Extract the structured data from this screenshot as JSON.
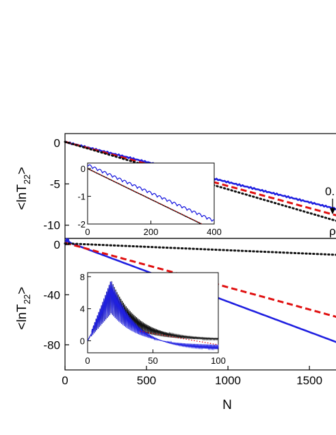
{
  "chart_data": [
    {
      "type": "line",
      "panel": "top main",
      "ylabel": "<lnT",
      "ylabel_sub": "22",
      "ylabel_close": ">",
      "xlim": [
        0,
        1680
      ],
      "ylim": [
        -11.6,
        1.1
      ],
      "yticks": [
        0,
        -5,
        -10
      ],
      "annotations": {
        "value_text": "0.",
        "rho_text": "ρ"
      },
      "series": [
        {
          "style": "solid",
          "color": "#1f1fe0",
          "slope": -0.00488,
          "intercept": 0.1
        },
        {
          "style": "dashed",
          "color": "#e01010",
          "slope": -0.00535,
          "intercept": 0.1
        },
        {
          "style": "dotted",
          "color": "#111111",
          "slope": -0.00575,
          "intercept": 0.1
        }
      ]
    },
    {
      "type": "line",
      "panel": "top inset",
      "xlim": [
        0,
        400
      ],
      "ylim": [
        -2,
        0.2
      ],
      "xticks": [
        0,
        200,
        400
      ],
      "yticks": [
        0,
        -1,
        -2
      ],
      "series": [
        {
          "style": "oscillating",
          "color": "#1f1fe0",
          "x_end": 400,
          "y_end": -2.0
        },
        {
          "style": "solid",
          "color": "#111111",
          "x_end": 360,
          "y_end": -2.0
        },
        {
          "style": "dotted",
          "color": "#e01010",
          "x_end": 362,
          "y_end": -2.0
        }
      ]
    },
    {
      "type": "line",
      "panel": "bottom main",
      "xlabel": "N",
      "ylabel": "<lnT",
      "ylabel_sub": "22",
      "ylabel_close": ">",
      "xlim": [
        0,
        1680
      ],
      "ylim": [
        -100,
        5
      ],
      "xticks": [
        0,
        500,
        1000,
        1500
      ],
      "yticks": [
        0,
        -40,
        -80
      ],
      "series": [
        {
          "style": "solid",
          "color": "#1f1fe0",
          "slope": -0.0485,
          "intercept": 3.0,
          "spike_max": 4
        },
        {
          "style": "dashed",
          "color": "#e01010",
          "slope": -0.0355,
          "intercept": 1.5
        },
        {
          "style": "dotted",
          "color": "#111111",
          "slope": -0.00545,
          "intercept": 1.0
        }
      ]
    },
    {
      "type": "line",
      "panel": "bottom inset",
      "xlim": [
        0,
        100
      ],
      "ylim": [
        -1.5,
        8.5
      ],
      "xticks": [
        0,
        50,
        100
      ],
      "yticks": [
        0,
        4,
        8
      ],
      "series": [
        {
          "style": "oscillating",
          "color": "#111111",
          "peak_x": 18,
          "peak_y": 7.6,
          "end_y": 0.2
        },
        {
          "style": "oscillating",
          "color": "#1f1fe0",
          "peak_x": 18,
          "peak_y": 7.6,
          "end_y": -1.2
        },
        {
          "style": "dotted",
          "color": "#e01010",
          "end_y": -0.5
        }
      ]
    }
  ]
}
